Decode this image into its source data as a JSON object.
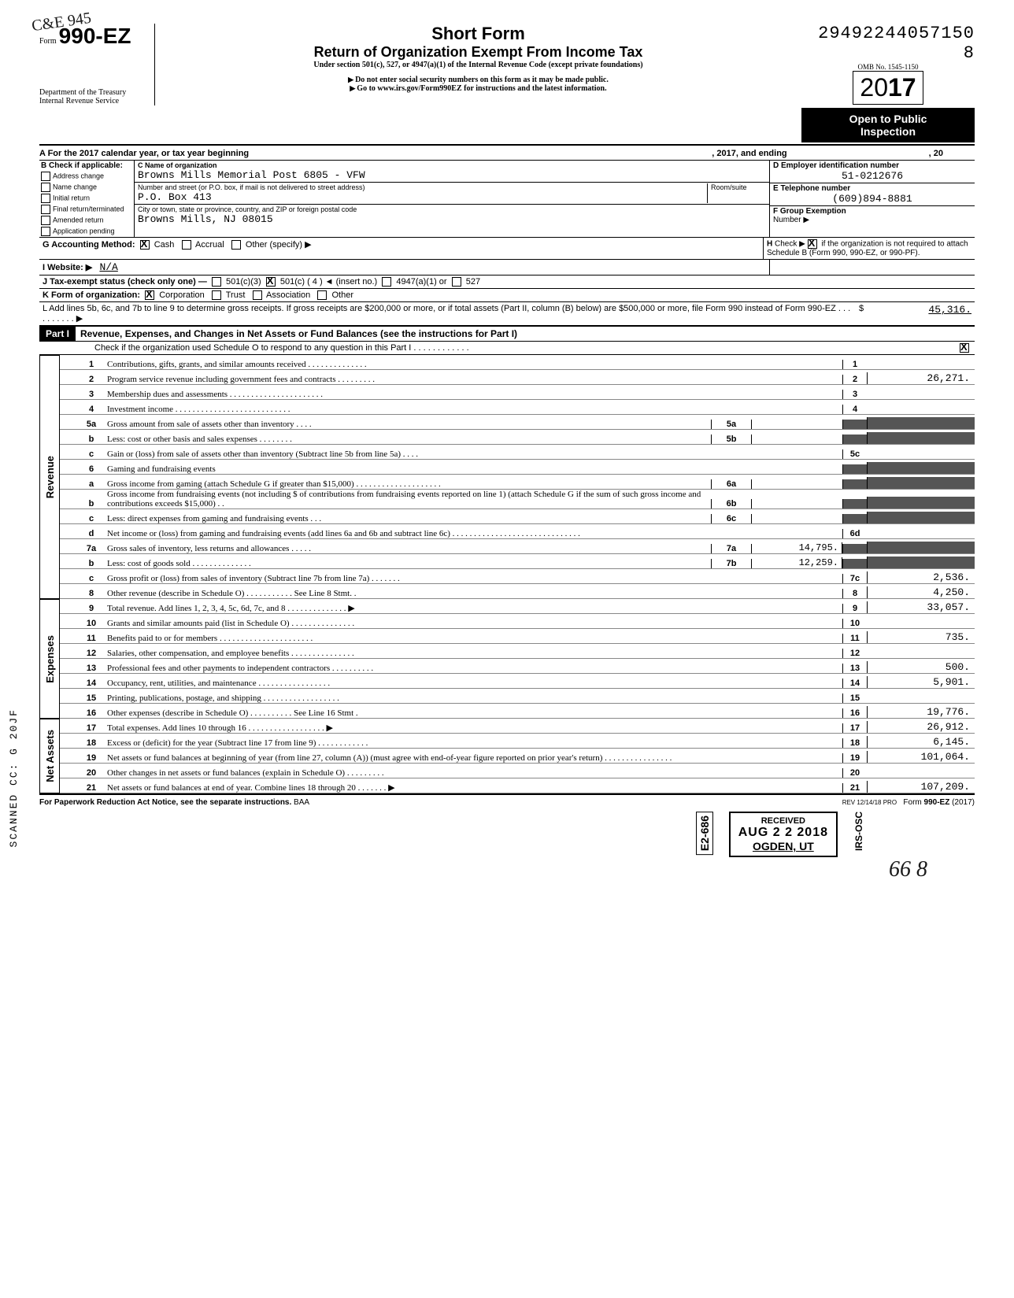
{
  "stamp_topleft": "C&E\n945",
  "header": {
    "form_prefix": "Form",
    "form_number": "990-EZ",
    "dept": "Department of the Treasury\nInternal Revenue Service",
    "short_form": "Short Form",
    "title": "Return of Organization Exempt From Income Tax",
    "subtitle": "Under section 501(c), 527, or 4947(a)(1) of the Internal Revenue Code (except private foundations)",
    "warn1": "Do not enter social security numbers on this form as it may be made public.",
    "warn2": "Go to www.irs.gov/Form990EZ for instructions and the latest information.",
    "dln": "29492244057150",
    "dln_suffix": "8",
    "omb": "OMB No. 1545-1150",
    "year_prefix": "20",
    "year_bold": "17",
    "open": "Open to Public\nInspection"
  },
  "rowA": {
    "label": "A For the 2017 calendar year, or tax year beginning",
    "mid": ", 2017, and ending",
    "end": ", 20"
  },
  "boxB": {
    "header": "B Check if applicable:",
    "items": [
      "Address change",
      "Name change",
      "Initial return",
      "Final return/terminated",
      "Amended return",
      "Application pending"
    ]
  },
  "boxC": {
    "label": "C Name of organization",
    "name": "Browns Mills Memorial Post 6805 - VFW",
    "addr_label": "Number and street (or P.O. box, if mail is not delivered to street address)",
    "room_label": "Room/suite",
    "addr": "P.O. Box 413",
    "city_label": "City or town, state or province, country, and ZIP or foreign postal code",
    "city": "Browns Mills, NJ 08015"
  },
  "boxD": {
    "label": "D Employer identification number",
    "value": "51-0212676"
  },
  "boxE": {
    "label": "E Telephone number",
    "value": "(609)894-8881"
  },
  "boxF": {
    "label": "F Group Exemption",
    "label2": "Number ▶"
  },
  "rowG": {
    "label": "G Accounting Method:",
    "opts": [
      "Cash",
      "Accrual",
      "Other (specify) ▶"
    ],
    "checked": 0
  },
  "rowH": {
    "text": "H Check ▶ ☒ if the organization is not required to attach Schedule B (Form 990, 990-EZ, or 990-PF)."
  },
  "rowI": {
    "label": "I Website: ▶",
    "value": "N/A"
  },
  "rowJ": {
    "label": "J Tax-exempt status (check only one) —",
    "opts": [
      "501(c)(3)",
      "501(c) (   4  ) ◄ (insert no.)",
      "4947(a)(1) or",
      "527"
    ],
    "checked": 1
  },
  "rowK": {
    "label": "K Form of organization:",
    "opts": [
      "Corporation",
      "Trust",
      "Association",
      "Other"
    ],
    "checked": 0
  },
  "rowL": {
    "text": "L Add lines 5b, 6c, and 7b to line 9 to determine gross receipts. If gross receipts are $200,000 or more, or if total assets (Part II, column (B) below) are $500,000 or more, file Form 990 instead of Form 990-EZ . . . . . . . . . . ▶",
    "value": "45,316."
  },
  "part1": {
    "label": "Part I",
    "title": "Revenue, Expenses, and Changes in Net Assets or Fund Balances (see the instructions for Part I)",
    "check_line": "Check if the organization used Schedule O to respond to any question in this Part I . . . . . . . . . . . .",
    "checked": true
  },
  "sections": {
    "revenue": "Revenue",
    "expenses": "Expenses",
    "netassets": "Net Assets"
  },
  "lines": [
    {
      "n": "1",
      "d": "Contributions, gifts, grants, and similar amounts received . . . . . . . . . . . . . .",
      "box": "1",
      "v": ""
    },
    {
      "n": "2",
      "d": "Program service revenue including government fees and contracts  . . . . . . . . .",
      "box": "2",
      "v": "26,271."
    },
    {
      "n": "3",
      "d": "Membership dues and assessments . . . . . . . . . . . . . . . . . . . . . .",
      "box": "3",
      "v": ""
    },
    {
      "n": "4",
      "d": "Investment income   . . . . . . . . . . . . . . . . . . . . . . . . . . .",
      "box": "4",
      "v": ""
    },
    {
      "n": "5a",
      "d": "Gross amount from sale of assets other than inventory  . . . .",
      "ibox": "5a",
      "iv": ""
    },
    {
      "n": "b",
      "d": "Less: cost or other basis and sales expenses . . . . . . . .",
      "ibox": "5b",
      "iv": ""
    },
    {
      "n": "c",
      "d": "Gain or (loss) from sale of assets other than inventory (Subtract line 5b from line 5a) . . . .",
      "box": "5c",
      "v": ""
    },
    {
      "n": "6",
      "d": "Gaming and fundraising events"
    },
    {
      "n": "a",
      "d": "Gross income from gaming (attach Schedule G if greater than $15,000) . . . . . . . . . . . . . . . . . . . .",
      "ibox": "6a",
      "iv": ""
    },
    {
      "n": "b",
      "d": "Gross income from fundraising events (not including  $                    of contributions from fundraising events reported on line 1) (attach Schedule G if the sum of such gross income and contributions exceeds $15,000) . .",
      "ibox": "6b",
      "iv": ""
    },
    {
      "n": "c",
      "d": "Less: direct expenses from gaming and fundraising events  . . .",
      "ibox": "6c",
      "iv": ""
    },
    {
      "n": "d",
      "d": "Net income or (loss) from gaming and fundraising events (add lines 6a and 6b and subtract line 6c)   . . . . . . . . . . . . . . . . . . . . . . . . . . . . . .",
      "box": "6d",
      "v": ""
    },
    {
      "n": "7a",
      "d": "Gross sales of inventory, less returns and allowances . . . . .",
      "ibox": "7a",
      "iv": "14,795."
    },
    {
      "n": "b",
      "d": "Less: cost of goods sold    . . . . . . . . . . . . . .",
      "ibox": "7b",
      "iv": "12,259."
    },
    {
      "n": "c",
      "d": "Gross profit or (loss) from sales of inventory (Subtract line 7b from line 7a) . . . . . . .",
      "box": "7c",
      "v": "2,536."
    },
    {
      "n": "8",
      "d": "Other revenue (describe in Schedule O) . . . . . . . . . . . See Line 8 Stmt. .",
      "box": "8",
      "v": "4,250."
    },
    {
      "n": "9",
      "d": "Total revenue. Add lines 1, 2, 3, 4, 5c, 6d, 7c, and 8  . . . . . . . . . . . . . . ▶",
      "box": "9",
      "v": "33,057."
    },
    {
      "n": "10",
      "d": "Grants and similar amounts paid (list in Schedule O)  . . . . . . . . . . . . . . .",
      "box": "10",
      "v": ""
    },
    {
      "n": "11",
      "d": "Benefits paid to or for members  . . . . . . . . . . . . . . . . . . . . . .",
      "box": "11",
      "v": "735."
    },
    {
      "n": "12",
      "d": "Salaries, other compensation, and employee benefits . . . . . . . . . . . . . . .",
      "box": "12",
      "v": ""
    },
    {
      "n": "13",
      "d": "Professional fees and other payments to independent contractors . . . . . . . . . .",
      "box": "13",
      "v": "500."
    },
    {
      "n": "14",
      "d": "Occupancy, rent, utilities, and maintenance   . . . . . . . . . . . . . . . . .",
      "box": "14",
      "v": "5,901."
    },
    {
      "n": "15",
      "d": "Printing, publications, postage, and shipping . . . . . . . . . . . . . . . . . .",
      "box": "15",
      "v": ""
    },
    {
      "n": "16",
      "d": "Other expenses (describe in Schedule O) . . . . . . . . . . See Line 16 Stmt .",
      "box": "16",
      "v": "19,776."
    },
    {
      "n": "17",
      "d": "Total expenses. Add lines 10 through 16  . . . . . . . . . . . . . . . . . . ▶",
      "box": "17",
      "v": "26,912."
    },
    {
      "n": "18",
      "d": "Excess or (deficit) for the year (Subtract line 17 from line 9)  . . . . . . . . . . . .",
      "box": "18",
      "v": "6,145."
    },
    {
      "n": "19",
      "d": "Net assets or fund balances at beginning of year (from line 27, column (A)) (must agree with end-of-year figure reported on prior year's return)   . . . . . . . . . . . . . . . .",
      "box": "19",
      "v": "101,064."
    },
    {
      "n": "20",
      "d": "Other changes in net assets or fund balances (explain in Schedule O) . . . . . . . . .",
      "box": "20",
      "v": ""
    },
    {
      "n": "21",
      "d": "Net assets or fund balances at end of year. Combine lines 18 through 20 . . . . . . . ▶",
      "box": "21",
      "v": "107,209."
    }
  ],
  "footer": {
    "left": "For Paperwork Reduction Act Notice, see the separate instructions.",
    "mid": "BAA",
    "right_rev": "REV 12/14/18 PRO",
    "right_form": "Form 990-EZ (2017)"
  },
  "received": {
    "code": "E2-686",
    "word": "RECEIVED",
    "date": "AUG 2 2 2018",
    "where": "OGDEN, UT",
    "side": "IRS-OSC"
  },
  "handwritten_bottom": "66  8",
  "side_stamp": "SCANNED  CC:  G  20JF"
}
